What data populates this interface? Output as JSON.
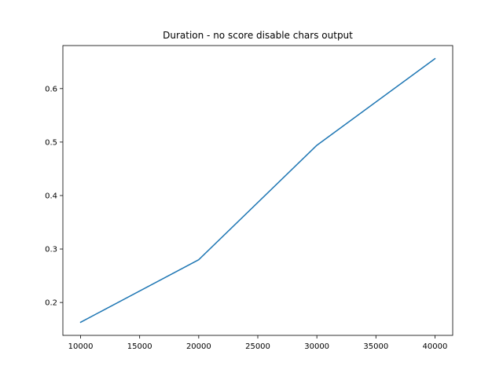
{
  "chart_data": {
    "type": "line",
    "title": "Duration - no score disable chars output",
    "xlabel": "",
    "ylabel": "",
    "xlim": [
      8500,
      41500
    ],
    "ylim": [
      0.1385,
      0.6805
    ],
    "x_ticks": [
      10000,
      15000,
      20000,
      25000,
      30000,
      35000,
      40000
    ],
    "y_ticks": [
      0.2,
      0.3,
      0.4,
      0.5,
      0.6
    ],
    "grid": false,
    "legend": "none",
    "series": [
      {
        "color": "#1f77b4",
        "x": [
          10000,
          20000,
          30000,
          40000
        ],
        "y": [
          0.163,
          0.28,
          0.494,
          0.656
        ]
      }
    ]
  }
}
